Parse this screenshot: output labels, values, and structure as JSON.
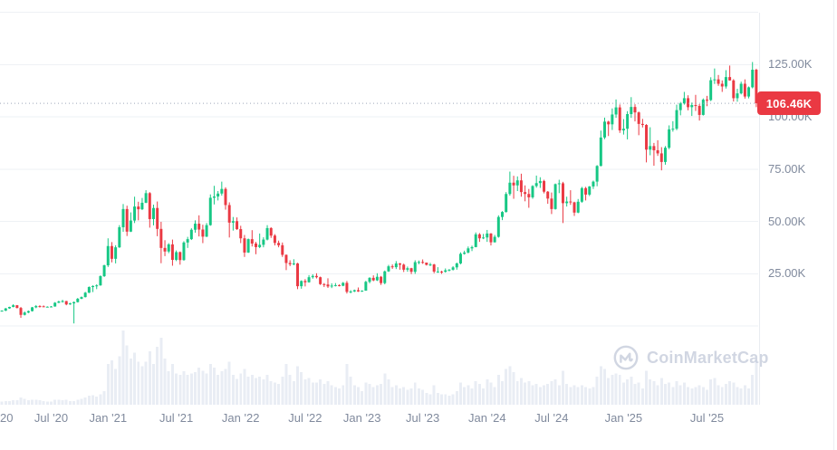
{
  "watermark": {
    "text": "CoinMarketCap"
  },
  "colors": {
    "up": "#16c784",
    "down": "#ea3943",
    "badge_bg": "#ea3943",
    "badge_text": "#ffffff",
    "grid": "#eef1f5",
    "axis_text": "#808a9d",
    "volume_bar": "#e9edf4",
    "dotted_line": "#9fa9ba",
    "watermark": "#c9d0de"
  },
  "price_axis": {
    "current_price_label": "106.46K",
    "ticks": [
      {
        "label": "125.00K",
        "value_k": 125
      },
      {
        "label": "100.00K",
        "value_k": 100
      },
      {
        "label": "75.00K",
        "value_k": 75
      },
      {
        "label": "50.00K",
        "value_k": 50
      },
      {
        "label": "25.00K",
        "value_k": 25
      }
    ]
  },
  "chart_data": {
    "type": "candlestick",
    "subpanel": "volume-bars",
    "unit": "thousand USD (K)",
    "current_price_k": 106.46,
    "y_axis": {
      "tick_labels": [
        "125.00K",
        "100.00K",
        "75.00K",
        "50.00K",
        "25.00K"
      ],
      "ticks_k": [
        125,
        100,
        75,
        50,
        25
      ],
      "gridlines_k": [
        150,
        125,
        100,
        75,
        50,
        25,
        0
      ],
      "range_k": [
        0,
        155
      ],
      "grid": true,
      "position": "right"
    },
    "x_axis": {
      "ticks": [
        {
          "label": "20",
          "i": 0
        },
        {
          "label": "Jul '20",
          "i": 13
        },
        {
          "label": "Jan '21",
          "i": 28
        },
        {
          "label": "Jul '21",
          "i": 46
        },
        {
          "label": "Jan '22",
          "i": 63
        },
        {
          "label": "Jul '22",
          "i": 80
        },
        {
          "label": "Jan '23",
          "i": 95
        },
        {
          "label": "Jul '23",
          "i": 111
        },
        {
          "label": "Jan '24",
          "i": 128
        },
        {
          "label": "Jul '24",
          "i": 145
        },
        {
          "label": "Jan '25",
          "i": 164
        },
        {
          "label": "Jul '25",
          "i": 186
        }
      ]
    },
    "volume_unit": "relative 0-100 of tallest bar",
    "candles_ohlcv_k": [
      [
        7.2,
        7.5,
        6.9,
        7.3,
        4
      ],
      [
        7.3,
        8.6,
        7.1,
        8.4,
        5
      ],
      [
        8.4,
        9.2,
        8.2,
        9.1,
        5
      ],
      [
        9.1,
        10.4,
        8.9,
        9.9,
        6
      ],
      [
        9.9,
        10.0,
        8.4,
        8.6,
        6
      ],
      [
        8.6,
        9.1,
        3.9,
        5.3,
        10
      ],
      [
        5.3,
        6.9,
        5.0,
        6.4,
        8
      ],
      [
        6.4,
        7.4,
        6.1,
        7.1,
        6
      ],
      [
        7.1,
        9.1,
        6.9,
        8.9,
        7
      ],
      [
        8.9,
        10.0,
        8.5,
        9.5,
        7
      ],
      [
        9.5,
        9.9,
        8.8,
        9.4,
        6
      ],
      [
        9.4,
        9.8,
        9.0,
        9.1,
        5
      ],
      [
        9.1,
        9.4,
        8.9,
        9.2,
        4
      ],
      [
        9.2,
        9.5,
        9.0,
        9.3,
        4
      ],
      [
        9.3,
        11.4,
        9.2,
        11.1,
        7
      ],
      [
        11.1,
        12.1,
        10.9,
        11.7,
        7
      ],
      [
        11.7,
        12.5,
        11.2,
        11.9,
        6
      ],
      [
        11.9,
        12.0,
        9.9,
        10.3,
        7
      ],
      [
        10.3,
        11.1,
        10.1,
        10.8,
        5
      ],
      [
        10.8,
        11.7,
        1.2,
        11.4,
        5
      ],
      [
        11.4,
        13.4,
        11.2,
        13.0,
        7
      ],
      [
        13.0,
        14.1,
        12.8,
        13.8,
        8
      ],
      [
        13.8,
        16.3,
        13.6,
        15.9,
        10
      ],
      [
        15.9,
        18.9,
        15.7,
        18.6,
        12
      ],
      [
        18.6,
        19.4,
        16.2,
        19.1,
        13
      ],
      [
        19.1,
        19.9,
        17.6,
        19.4,
        11
      ],
      [
        19.4,
        24.2,
        19.2,
        23.8,
        14
      ],
      [
        23.8,
        29.3,
        23.4,
        29.0,
        18
      ],
      [
        29.0,
        41.9,
        28.2,
        38.2,
        55
      ],
      [
        38.2,
        40.1,
        30.4,
        32.1,
        60
      ],
      [
        32.1,
        38.6,
        29.9,
        37.6,
        48
      ],
      [
        37.6,
        48.2,
        37.3,
        47.2,
        65
      ],
      [
        47.2,
        58.3,
        45.0,
        55.9,
        100
      ],
      [
        55.9,
        57.5,
        43.0,
        45.1,
        80
      ],
      [
        45.1,
        54.3,
        44.9,
        50.4,
        62
      ],
      [
        50.4,
        61.8,
        49.2,
        57.1,
        70
      ],
      [
        57.1,
        59.4,
        50.5,
        55.8,
        58
      ],
      [
        55.8,
        61.2,
        55.4,
        58.9,
        52
      ],
      [
        58.9,
        64.9,
        58.7,
        63.5,
        58
      ],
      [
        63.5,
        64.0,
        47.0,
        51.1,
        72
      ],
      [
        51.1,
        58.0,
        48.1,
        56.4,
        55
      ],
      [
        56.4,
        59.5,
        42.9,
        46.4,
        78
      ],
      [
        46.4,
        49.8,
        30.0,
        37.3,
        90
      ],
      [
        37.3,
        41.0,
        33.4,
        35.6,
        62
      ],
      [
        35.6,
        39.6,
        34.8,
        39.0,
        45
      ],
      [
        39.0,
        41.3,
        28.8,
        31.6,
        55
      ],
      [
        31.6,
        36.1,
        31.0,
        35.3,
        42
      ],
      [
        35.3,
        35.6,
        29.3,
        31.5,
        40
      ],
      [
        31.5,
        40.5,
        31.2,
        39.9,
        45
      ],
      [
        39.9,
        42.6,
        37.3,
        41.5,
        40
      ],
      [
        41.5,
        46.7,
        41.1,
        46.0,
        42
      ],
      [
        46.0,
        50.5,
        44.6,
        48.9,
        44
      ],
      [
        48.9,
        52.9,
        42.8,
        46.1,
        50
      ],
      [
        46.1,
        48.4,
        39.6,
        42.7,
        46
      ],
      [
        42.7,
        49.2,
        42.5,
        48.2,
        42
      ],
      [
        48.2,
        62.9,
        47.9,
        61.3,
        55
      ],
      [
        61.3,
        67.0,
        58.1,
        61.9,
        50
      ],
      [
        61.9,
        64.5,
        60.0,
        63.3,
        40
      ],
      [
        63.3,
        69.0,
        62.3,
        65.5,
        45
      ],
      [
        65.5,
        66.3,
        55.6,
        57.8,
        48
      ],
      [
        57.8,
        59.1,
        42.3,
        49.4,
        58
      ],
      [
        49.4,
        52.1,
        45.6,
        50.1,
        40
      ],
      [
        50.1,
        51.9,
        45.9,
        46.3,
        35
      ],
      [
        46.3,
        47.9,
        39.6,
        41.9,
        42
      ],
      [
        41.9,
        43.5,
        33.0,
        35.1,
        48
      ],
      [
        35.1,
        41.8,
        34.9,
        41.5,
        38
      ],
      [
        41.5,
        45.8,
        38.0,
        39.4,
        40
      ],
      [
        39.4,
        40.2,
        34.3,
        37.7,
        36
      ],
      [
        37.7,
        44.2,
        37.2,
        38.8,
        38
      ],
      [
        38.8,
        42.4,
        37.6,
        41.3,
        34
      ],
      [
        41.3,
        48.2,
        40.9,
        46.8,
        40
      ],
      [
        46.8,
        47.2,
        42.1,
        43.2,
        32
      ],
      [
        43.2,
        43.9,
        38.5,
        39.7,
        30
      ],
      [
        39.7,
        40.8,
        37.6,
        38.6,
        28
      ],
      [
        38.6,
        39.9,
        33.0,
        34.0,
        38
      ],
      [
        34.0,
        34.2,
        26.7,
        30.1,
        55
      ],
      [
        30.1,
        31.4,
        28.6,
        29.5,
        40
      ],
      [
        29.5,
        31.9,
        29.0,
        29.9,
        32
      ],
      [
        29.9,
        30.2,
        17.6,
        19.0,
        52
      ],
      [
        19.0,
        21.8,
        17.8,
        21.5,
        44
      ],
      [
        21.5,
        22.4,
        18.9,
        20.9,
        34
      ],
      [
        20.9,
        24.3,
        20.7,
        23.3,
        36
      ],
      [
        23.3,
        24.7,
        22.6,
        23.9,
        30
      ],
      [
        23.9,
        25.2,
        22.7,
        23.3,
        30
      ],
      [
        23.3,
        23.6,
        19.6,
        20.0,
        34
      ],
      [
        20.0,
        20.5,
        18.6,
        19.8,
        28
      ],
      [
        19.8,
        22.8,
        18.2,
        18.9,
        32
      ],
      [
        18.9,
        20.4,
        18.1,
        19.3,
        26
      ],
      [
        19.3,
        20.5,
        18.9,
        19.5,
        24
      ],
      [
        19.5,
        19.9,
        18.9,
        19.2,
        22
      ],
      [
        19.2,
        21.0,
        19.0,
        20.6,
        26
      ],
      [
        20.6,
        21.5,
        15.5,
        16.3,
        55
      ],
      [
        16.3,
        17.1,
        15.6,
        16.5,
        38
      ],
      [
        16.5,
        17.4,
        16.2,
        17.1,
        26
      ],
      [
        17.1,
        18.4,
        16.3,
        16.5,
        24
      ],
      [
        16.5,
        17.0,
        16.3,
        16.9,
        18
      ],
      [
        16.9,
        21.6,
        16.8,
        21.1,
        30
      ],
      [
        21.1,
        23.3,
        20.4,
        23.0,
        28
      ],
      [
        23.0,
        24.2,
        21.4,
        21.8,
        24
      ],
      [
        21.8,
        25.2,
        21.5,
        23.5,
        26
      ],
      [
        23.5,
        23.9,
        19.6,
        20.5,
        28
      ],
      [
        20.5,
        26.5,
        19.9,
        26.1,
        42
      ],
      [
        26.1,
        29.2,
        25.8,
        28.5,
        34
      ],
      [
        28.5,
        29.4,
        27.3,
        28.1,
        24
      ],
      [
        28.1,
        31.0,
        27.2,
        29.9,
        26
      ],
      [
        29.9,
        30.1,
        26.9,
        29.3,
        22
      ],
      [
        29.3,
        29.8,
        25.8,
        26.9,
        24
      ],
      [
        26.9,
        28.4,
        25.9,
        27.6,
        20
      ],
      [
        27.6,
        27.8,
        24.8,
        25.9,
        22
      ],
      [
        25.9,
        31.4,
        24.9,
        30.5,
        30
      ],
      [
        30.5,
        31.3,
        29.5,
        30.6,
        22
      ],
      [
        30.6,
        31.8,
        29.7,
        30.3,
        20
      ],
      [
        30.3,
        30.3,
        28.9,
        29.2,
        16
      ],
      [
        29.2,
        30.2,
        28.6,
        29.4,
        14
      ],
      [
        29.4,
        29.7,
        25.2,
        26.0,
        26
      ],
      [
        26.0,
        28.1,
        25.4,
        26.0,
        16
      ],
      [
        26.0,
        26.4,
        24.9,
        25.9,
        14
      ],
      [
        25.9,
        27.5,
        25.5,
        26.6,
        14
      ],
      [
        26.6,
        27.2,
        26.1,
        26.9,
        12
      ],
      [
        26.9,
        28.6,
        26.5,
        28.0,
        14
      ],
      [
        28.0,
        30.3,
        26.9,
        29.9,
        18
      ],
      [
        29.9,
        35.2,
        29.5,
        34.5,
        30
      ],
      [
        34.5,
        36.0,
        34.1,
        35.1,
        24
      ],
      [
        35.1,
        38.0,
        34.7,
        37.1,
        26
      ],
      [
        37.1,
        38.4,
        35.8,
        37.7,
        22
      ],
      [
        37.7,
        44.7,
        37.6,
        43.8,
        32
      ],
      [
        43.8,
        44.4,
        40.2,
        41.9,
        28
      ],
      [
        41.9,
        44.0,
        41.5,
        42.3,
        22
      ],
      [
        42.3,
        45.9,
        40.2,
        44.2,
        34
      ],
      [
        44.2,
        44.4,
        38.5,
        40.0,
        30
      ],
      [
        40.0,
        43.5,
        39.9,
        42.6,
        24
      ],
      [
        42.6,
        52.9,
        42.2,
        52.1,
        40
      ],
      [
        52.1,
        54.9,
        50.6,
        54.5,
        32
      ],
      [
        54.5,
        64.0,
        54.2,
        63.1,
        48
      ],
      [
        63.1,
        73.8,
        62.3,
        68.5,
        52
      ],
      [
        68.5,
        71.8,
        60.8,
        67.2,
        44
      ],
      [
        67.2,
        71.5,
        64.5,
        69.6,
        32
      ],
      [
        69.6,
        72.8,
        61.8,
        64.0,
        36
      ],
      [
        64.0,
        67.2,
        59.6,
        63.1,
        30
      ],
      [
        63.1,
        65.5,
        56.5,
        61.5,
        32
      ],
      [
        61.5,
        67.3,
        60.8,
        66.9,
        26
      ],
      [
        66.9,
        71.9,
        66.1,
        68.3,
        28
      ],
      [
        68.3,
        71.1,
        66.0,
        69.3,
        24
      ],
      [
        69.3,
        69.9,
        63.4,
        64.2,
        26
      ],
      [
        64.2,
        64.5,
        58.4,
        60.9,
        28
      ],
      [
        60.9,
        63.8,
        53.5,
        55.9,
        32
      ],
      [
        55.9,
        68.1,
        55.6,
        67.8,
        34
      ],
      [
        67.8,
        69.9,
        63.5,
        68.2,
        26
      ],
      [
        68.2,
        68.9,
        49.2,
        58.7,
        46
      ],
      [
        58.7,
        61.8,
        57.1,
        59.5,
        28
      ],
      [
        59.5,
        64.9,
        57.9,
        59.1,
        24
      ],
      [
        59.1,
        59.4,
        52.6,
        54.2,
        26
      ],
      [
        54.2,
        60.7,
        53.9,
        59.4,
        24
      ],
      [
        59.4,
        66.5,
        58.9,
        65.9,
        26
      ],
      [
        65.9,
        66.5,
        60.0,
        62.8,
        24
      ],
      [
        62.8,
        66.9,
        62.1,
        66.7,
        22
      ],
      [
        66.7,
        69.5,
        65.5,
        69.0,
        24
      ],
      [
        69.0,
        76.9,
        66.8,
        76.5,
        38
      ],
      [
        76.5,
        93.4,
        76.3,
        90.1,
        52
      ],
      [
        90.1,
        99.6,
        89.3,
        97.7,
        48
      ],
      [
        97.7,
        98.1,
        90.8,
        96.4,
        36
      ],
      [
        96.4,
        104.0,
        93.7,
        101.1,
        40
      ],
      [
        101.1,
        108.3,
        99.5,
        104.5,
        42
      ],
      [
        104.5,
        105.9,
        92.3,
        93.5,
        40
      ],
      [
        93.5,
        98.9,
        91.5,
        94.3,
        30
      ],
      [
        94.3,
        102.7,
        89.2,
        101.3,
        34
      ],
      [
        101.3,
        109.4,
        99.5,
        104.7,
        38
      ],
      [
        104.7,
        106.0,
        97.8,
        102.1,
        28
      ],
      [
        102.1,
        102.5,
        91.2,
        96.6,
        30
      ],
      [
        96.6,
        99.0,
        94.9,
        96.1,
        22
      ],
      [
        96.1,
        96.5,
        78.2,
        84.3,
        46
      ],
      [
        84.3,
        95.0,
        81.6,
        86.0,
        34
      ],
      [
        86.0,
        87.5,
        76.6,
        84.0,
        32
      ],
      [
        84.0,
        88.8,
        81.3,
        82.5,
        26
      ],
      [
        82.5,
        85.5,
        74.4,
        78.4,
        36
      ],
      [
        78.4,
        86.0,
        77.1,
        85.2,
        28
      ],
      [
        85.2,
        95.9,
        84.5,
        94.0,
        30
      ],
      [
        94.0,
        97.9,
        92.9,
        94.3,
        24
      ],
      [
        94.3,
        105.8,
        93.6,
        103.2,
        32
      ],
      [
        103.2,
        107.1,
        100.7,
        106.4,
        26
      ],
      [
        106.4,
        111.9,
        105.8,
        108.9,
        30
      ],
      [
        108.9,
        110.3,
        103.1,
        104.6,
        24
      ],
      [
        104.6,
        106.8,
        100.4,
        105.6,
        22
      ],
      [
        105.6,
        110.5,
        102.8,
        105.2,
        24
      ],
      [
        105.2,
        106.1,
        98.2,
        100.9,
        26
      ],
      [
        100.9,
        108.8,
        100.6,
        108.2,
        24
      ],
      [
        108.2,
        110.0,
        105.1,
        108.0,
        20
      ],
      [
        108.0,
        118.9,
        107.5,
        117.5,
        34
      ],
      [
        117.5,
        123.1,
        115.7,
        117.9,
        36
      ],
      [
        117.9,
        120.0,
        114.8,
        115.8,
        26
      ],
      [
        115.8,
        117.4,
        111.9,
        114.5,
        24
      ],
      [
        114.5,
        122.3,
        113.5,
        119.0,
        28
      ],
      [
        119.0,
        124.5,
        117.3,
        117.4,
        32
      ],
      [
        117.4,
        118.0,
        107.3,
        108.9,
        30
      ],
      [
        108.9,
        113.4,
        107.2,
        111.2,
        24
      ],
      [
        111.2,
        116.8,
        110.7,
        115.8,
        22
      ],
      [
        115.8,
        117.9,
        108.7,
        109.7,
        26
      ],
      [
        109.7,
        114.5,
        108.8,
        114.1,
        22
      ],
      [
        114.1,
        126.2,
        113.6,
        122.5,
        40
      ],
      [
        122.5,
        123.0,
        104.6,
        106.46,
        60
      ]
    ]
  }
}
